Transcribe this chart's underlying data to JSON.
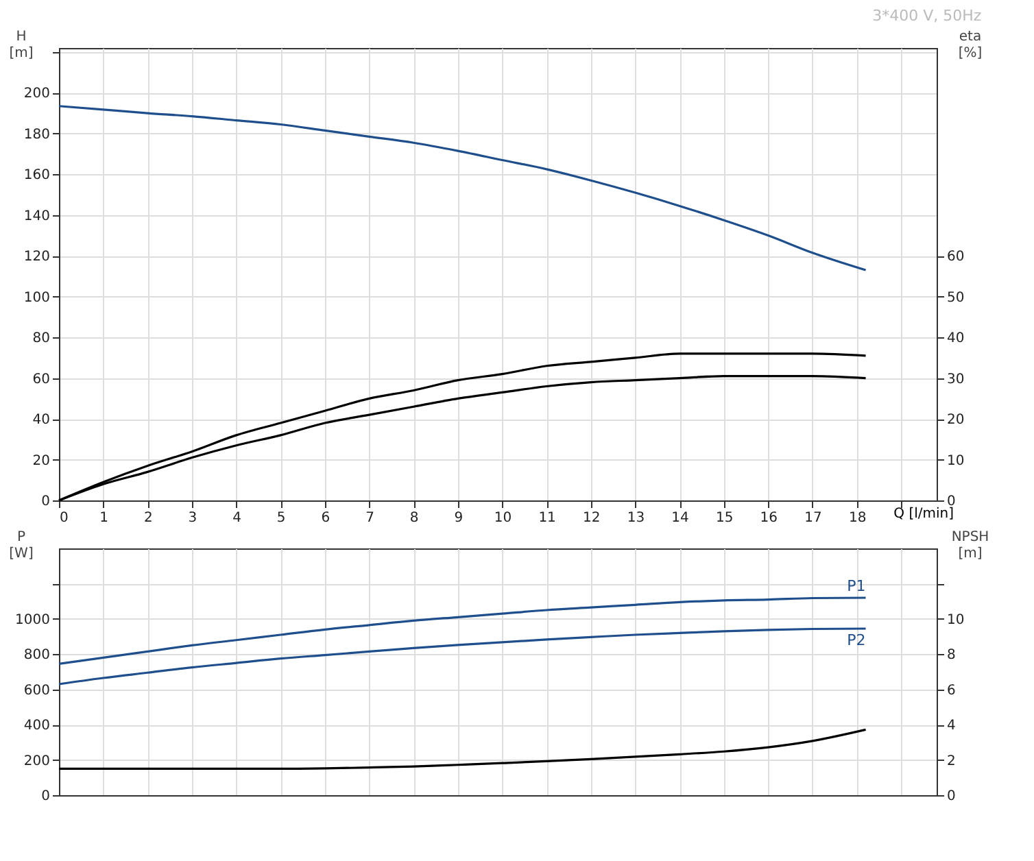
{
  "chart_data": [
    {
      "type": "line",
      "title": "3*400 V, 50Hz",
      "xlabel": "Q [l/min]",
      "ylabel": "H [m]",
      "y2label": "eta [%]",
      "xlim": [
        0,
        19.8
      ],
      "xticks": [
        0,
        1,
        2,
        3,
        4,
        5,
        6,
        7,
        8,
        9,
        10,
        11,
        12,
        13,
        14,
        15,
        16,
        17,
        18,
        {
          "value": 19,
          "label": null
        }
      ],
      "ylim": [
        0,
        222
      ],
      "yticks": [
        0,
        20,
        40,
        60,
        80,
        100,
        120,
        140,
        160,
        180,
        200,
        {
          "value": 220,
          "label": null
        }
      ],
      "y2lim": [
        0,
        111
      ],
      "y2ticks": [
        0,
        10,
        20,
        30,
        40,
        50,
        60
      ],
      "grid": true,
      "line_style": "solid",
      "marker": "none",
      "x": [
        0,
        1,
        2,
        3,
        4,
        5,
        6,
        7,
        8,
        9,
        10,
        11,
        12,
        13,
        14,
        15,
        16,
        17,
        18.2
      ],
      "series": [
        {
          "color": "#1f4e8c",
          "values": [
            193.5,
            191.8,
            190,
            188.5,
            186.5,
            184.5,
            181.5,
            178.5,
            175.5,
            171.5,
            167,
            162.5,
            157,
            151,
            144.5,
            137.5,
            130,
            121.5,
            113
          ]
        },
        {
          "color": "#000000",
          "axis": "y2",
          "values": [
            0,
            4.5,
            8.5,
            12,
            16,
            19,
            22,
            25,
            27,
            29.5,
            31,
            33,
            34,
            35,
            36,
            36,
            36,
            36,
            35.5
          ]
        },
        {
          "color": "#000000",
          "axis": "y2",
          "values": [
            0,
            4,
            7,
            10.5,
            13.5,
            16,
            19,
            21,
            23,
            25,
            26.5,
            28,
            29,
            29.5,
            30,
            30.5,
            30.5,
            30.5,
            30
          ]
        }
      ]
    },
    {
      "type": "line",
      "ylabel": "P [W]",
      "y2label": "NPSH [m]",
      "tick_labels": "y",
      "xlim": [
        0,
        19.8
      ],
      "xticks": [
        0,
        1,
        2,
        3,
        4,
        5,
        6,
        7,
        8,
        9,
        10,
        11,
        12,
        13,
        14,
        15,
        16,
        17,
        18,
        {
          "value": 19,
          "label": null
        }
      ],
      "ylim": [
        0,
        1400
      ],
      "yticks": [
        0,
        200,
        400,
        600,
        800,
        1000,
        {
          "value": 1200,
          "label": null
        }
      ],
      "y2lim": [
        0,
        14
      ],
      "y2ticks": [
        0,
        2,
        4,
        6,
        8,
        10,
        {
          "value": 12,
          "label": null
        }
      ],
      "grid": true,
      "line_style": "solid",
      "marker": "none",
      "x": [
        0,
        1,
        2,
        3,
        4,
        5,
        6,
        7,
        8,
        9,
        10,
        11,
        12,
        13,
        14,
        15,
        16,
        17,
        18.2
      ],
      "series": [
        {
          "name": "P1",
          "color": "#1f4e8c",
          "values": [
            745,
            780,
            815,
            850,
            880,
            910,
            940,
            965,
            990,
            1010,
            1030,
            1050,
            1065,
            1080,
            1095,
            1105,
            1110,
            1118,
            1120
          ]
        },
        {
          "name": "P2",
          "color": "#1f4e8c",
          "values": [
            630,
            665,
            695,
            725,
            750,
            775,
            795,
            815,
            835,
            852,
            868,
            883,
            897,
            910,
            920,
            930,
            938,
            943,
            945
          ]
        },
        {
          "color": "#000000",
          "axis": "y2",
          "values": [
            1.5,
            1.5,
            1.5,
            1.5,
            1.5,
            1.5,
            1.52,
            1.57,
            1.63,
            1.72,
            1.82,
            1.93,
            2.05,
            2.18,
            2.32,
            2.48,
            2.72,
            3.08,
            3.72
          ]
        }
      ]
    }
  ]
}
